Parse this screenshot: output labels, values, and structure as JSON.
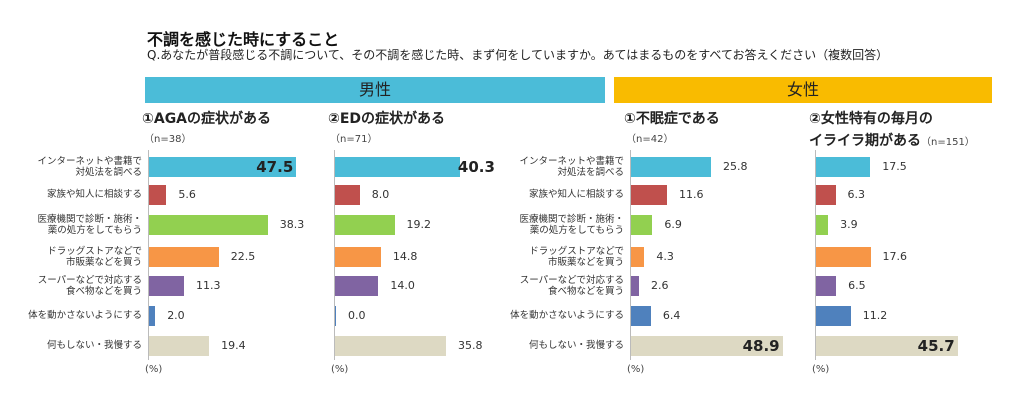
{
  "title": "不調を感じた時にすること",
  "question": "Q.あなたが普段感じる不調について、その不調を感じた時、まず何をしていますか。あてはまるものをすべてお答えください（複数回答）",
  "bands": {
    "male": "男性",
    "female": "女性"
  },
  "unit": "(%)",
  "chart_data": {
    "type": "bar",
    "categories": [
      "インターネットや書籍で\n対処法を調べる",
      "家族や知人に相談する",
      "医療機関で診断・施術・\n薬の処方をしてもらう",
      "ドラッグストアなどで\n市販薬などを買う",
      "スーパーなどで対応する\n食べ物などを買う",
      "体を動かさないようにする",
      "何もしない・我慢する"
    ],
    "colors": [
      "#4bbcd8",
      "#c0504d",
      "#92d050",
      "#f79646",
      "#8064a2",
      "#4f81bd",
      "#ddd9c3"
    ],
    "series": [
      {
        "group": "男性",
        "name": "①AGAの症状がある",
        "n": "（n=38）",
        "values": [
          47.5,
          5.6,
          38.3,
          22.5,
          11.3,
          2.0,
          19.4
        ]
      },
      {
        "group": "男性",
        "name": "②EDの症状がある",
        "n": "（n=71）",
        "values": [
          40.3,
          8.0,
          19.2,
          14.8,
          14.0,
          0.0,
          35.8
        ]
      },
      {
        "group": "女性",
        "name": "①不眠症である",
        "n": "（n=42）",
        "values": [
          25.8,
          11.6,
          6.9,
          4.3,
          2.6,
          6.4,
          48.9
        ]
      },
      {
        "group": "女性",
        "name": "②女性特有の毎月の\nイライラ期がある",
        "n": "（n=151）",
        "values": [
          17.5,
          6.3,
          3.9,
          17.6,
          6.5,
          11.2,
          45.7
        ]
      }
    ],
    "xlabel": "(%)",
    "xlim": [
      0,
      50
    ]
  }
}
